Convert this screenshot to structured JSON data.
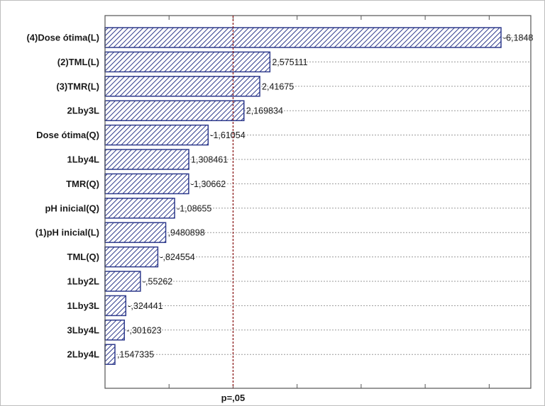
{
  "chart_data": {
    "type": "bar",
    "orientation": "horizontal",
    "categories": [
      "(4)Dose ótima(L)",
      "(2)TML(L)",
      "(3)TMR(L)",
      "2Lby3L",
      "Dose ótima(Q)",
      "1Lby4L",
      "TMR(Q)",
      "pH inicial(Q)",
      "(1)pH inicial(L)",
      "TML(Q)",
      "1Lby2L",
      "1Lby3L",
      "3Lby4L",
      "2Lby4L"
    ],
    "values": [
      6.1848,
      2.575111,
      2.41675,
      2.169834,
      1.61054,
      1.308461,
      1.30662,
      1.08655,
      0.9480898,
      0.824554,
      0.55262,
      0.324441,
      0.301623,
      0.1547335
    ],
    "value_labels": [
      "-6,1848",
      "2,575111",
      "2,41675",
      "2,169834",
      "-1,61054",
      "1,308461",
      "-1,30662",
      "-1,08655",
      ",9480898",
      "-,824554",
      "-,55262",
      "-,324441",
      "-,301623",
      ",1547335"
    ],
    "reference_line": {
      "value": 2.0,
      "label": "p=,05"
    },
    "xlim": [
      0,
      6.65
    ],
    "grid": true,
    "colors": {
      "bar_stroke": "#2e3a8c",
      "bar_hatch": "#2e3a8c",
      "ref_line": "#8b1a1a",
      "grid": "#9a9a9a"
    }
  }
}
